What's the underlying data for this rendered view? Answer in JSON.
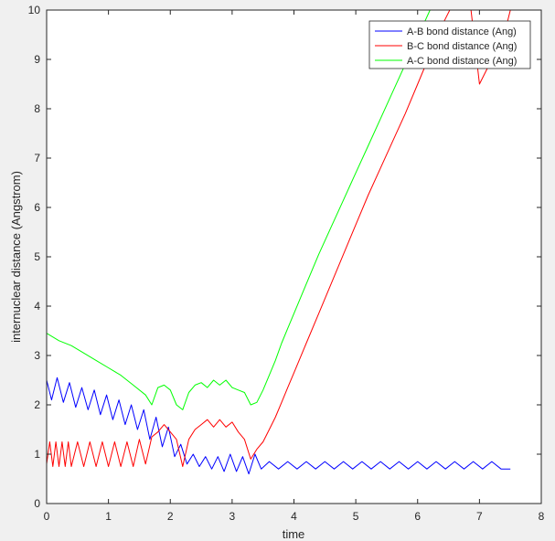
{
  "chart_data": {
    "type": "line",
    "title": "",
    "xlabel": "time",
    "ylabel": "internuclear distance (Angstrom)",
    "xlim": [
      0,
      8
    ],
    "ylim": [
      0,
      10
    ],
    "xticks": [
      "0",
      "1",
      "2",
      "3",
      "4",
      "5",
      "6",
      "7",
      "8"
    ],
    "yticks": [
      "0",
      "1",
      "2",
      "3",
      "4",
      "5",
      "6",
      "7",
      "8",
      "9",
      "10"
    ],
    "grid": false,
    "legend_position": "top-right",
    "series": [
      {
        "name": "A-B bond distance (Ang)",
        "color": "#0000ff",
        "x": [
          0,
          0.08,
          0.17,
          0.27,
          0.37,
          0.47,
          0.57,
          0.67,
          0.77,
          0.87,
          0.97,
          1.07,
          1.17,
          1.27,
          1.37,
          1.47,
          1.57,
          1.67,
          1.77,
          1.87,
          1.97,
          2.07,
          2.17,
          2.27,
          2.37,
          2.47,
          2.57,
          2.67,
          2.77,
          2.87,
          2.97,
          3.07,
          3.17,
          3.27,
          3.37,
          3.47,
          3.6,
          3.75,
          3.9,
          4.05,
          4.2,
          4.35,
          4.5,
          4.65,
          4.8,
          4.95,
          5.1,
          5.25,
          5.4,
          5.55,
          5.7,
          5.85,
          6.0,
          6.15,
          6.3,
          6.45,
          6.6,
          6.75,
          6.9,
          7.05,
          7.2,
          7.35,
          7.5
        ],
        "values": [
          2.5,
          2.1,
          2.55,
          2.05,
          2.45,
          1.95,
          2.35,
          1.9,
          2.3,
          1.8,
          2.2,
          1.7,
          2.1,
          1.6,
          2.0,
          1.5,
          1.9,
          1.3,
          1.75,
          1.15,
          1.55,
          0.95,
          1.2,
          0.8,
          1.0,
          0.75,
          0.95,
          0.7,
          0.95,
          0.65,
          1.0,
          0.65,
          0.95,
          0.6,
          1.0,
          0.7,
          0.85,
          0.7,
          0.85,
          0.7,
          0.85,
          0.7,
          0.85,
          0.7,
          0.85,
          0.7,
          0.85,
          0.7,
          0.85,
          0.7,
          0.85,
          0.7,
          0.85,
          0.7,
          0.85,
          0.7,
          0.85,
          0.7,
          0.85,
          0.7,
          0.85,
          0.7,
          0.7
        ]
      },
      {
        "name": "B-C bond distance (Ang)",
        "color": "#ff0000",
        "x": [
          0,
          0.05,
          0.1,
          0.15,
          0.2,
          0.25,
          0.3,
          0.35,
          0.4,
          0.5,
          0.6,
          0.7,
          0.8,
          0.9,
          1.0,
          1.1,
          1.2,
          1.3,
          1.4,
          1.5,
          1.6,
          1.7,
          1.8,
          1.9,
          2.0,
          2.1,
          2.2,
          2.3,
          2.4,
          2.5,
          2.6,
          2.7,
          2.8,
          2.9,
          3.0,
          3.1,
          3.2,
          3.3,
          3.4,
          3.5,
          3.6,
          3.7,
          3.8,
          3.9,
          4.0,
          4.2,
          4.4,
          4.6,
          4.8,
          5.0,
          5.2,
          5.4,
          5.6,
          5.8,
          6.0,
          6.2,
          6.4,
          6.6,
          6.8,
          7.0,
          7.2,
          7.4,
          7.5
        ],
        "values": [
          0.8,
          1.25,
          0.75,
          1.25,
          0.75,
          1.25,
          0.75,
          1.25,
          0.75,
          1.25,
          0.75,
          1.25,
          0.75,
          1.25,
          0.75,
          1.25,
          0.75,
          1.25,
          0.75,
          1.3,
          0.8,
          1.35,
          1.45,
          1.6,
          1.45,
          1.3,
          0.75,
          1.3,
          1.5,
          1.6,
          1.7,
          1.55,
          1.7,
          1.55,
          1.65,
          1.45,
          1.3,
          0.9,
          1.1,
          1.25,
          1.5,
          1.75,
          2.05,
          2.35,
          2.65,
          3.25,
          3.85,
          4.45,
          5.05,
          5.65,
          6.25,
          6.8,
          7.35,
          7.9,
          8.5,
          9.1,
          9.7,
          10.2,
          10.7,
          8.5,
          9.0,
          9.5,
          10.0
        ]
      },
      {
        "name": "A-C bond distance (Ang)",
        "color": "#00ff00",
        "x": [
          0,
          0.2,
          0.4,
          0.6,
          0.8,
          1.0,
          1.2,
          1.4,
          1.6,
          1.7,
          1.8,
          1.9,
          2.0,
          2.1,
          2.2,
          2.3,
          2.4,
          2.5,
          2.6,
          2.7,
          2.8,
          2.9,
          3.0,
          3.1,
          3.2,
          3.3,
          3.4,
          3.5,
          3.6,
          3.7,
          3.8,
          3.9,
          4.0,
          4.2,
          4.4,
          4.6,
          4.8,
          5.0,
          5.2,
          5.4,
          5.6,
          5.8,
          6.0,
          6.2,
          6.4,
          6.6,
          6.8,
          7.0,
          7.2,
          7.4,
          7.5
        ],
        "values": [
          3.45,
          3.3,
          3.2,
          3.05,
          2.9,
          2.75,
          2.6,
          2.4,
          2.2,
          2.0,
          2.35,
          2.4,
          2.3,
          2.0,
          1.9,
          2.25,
          2.4,
          2.45,
          2.35,
          2.5,
          2.4,
          2.5,
          2.35,
          2.3,
          2.25,
          2.0,
          2.05,
          2.3,
          2.6,
          2.9,
          3.25,
          3.55,
          3.85,
          4.45,
          5.05,
          5.6,
          6.15,
          6.7,
          7.25,
          7.8,
          8.35,
          8.9,
          9.45,
          10.0,
          10.3,
          10.3,
          10.3,
          10.3,
          10.3,
          10.3,
          10.3
        ]
      }
    ]
  }
}
